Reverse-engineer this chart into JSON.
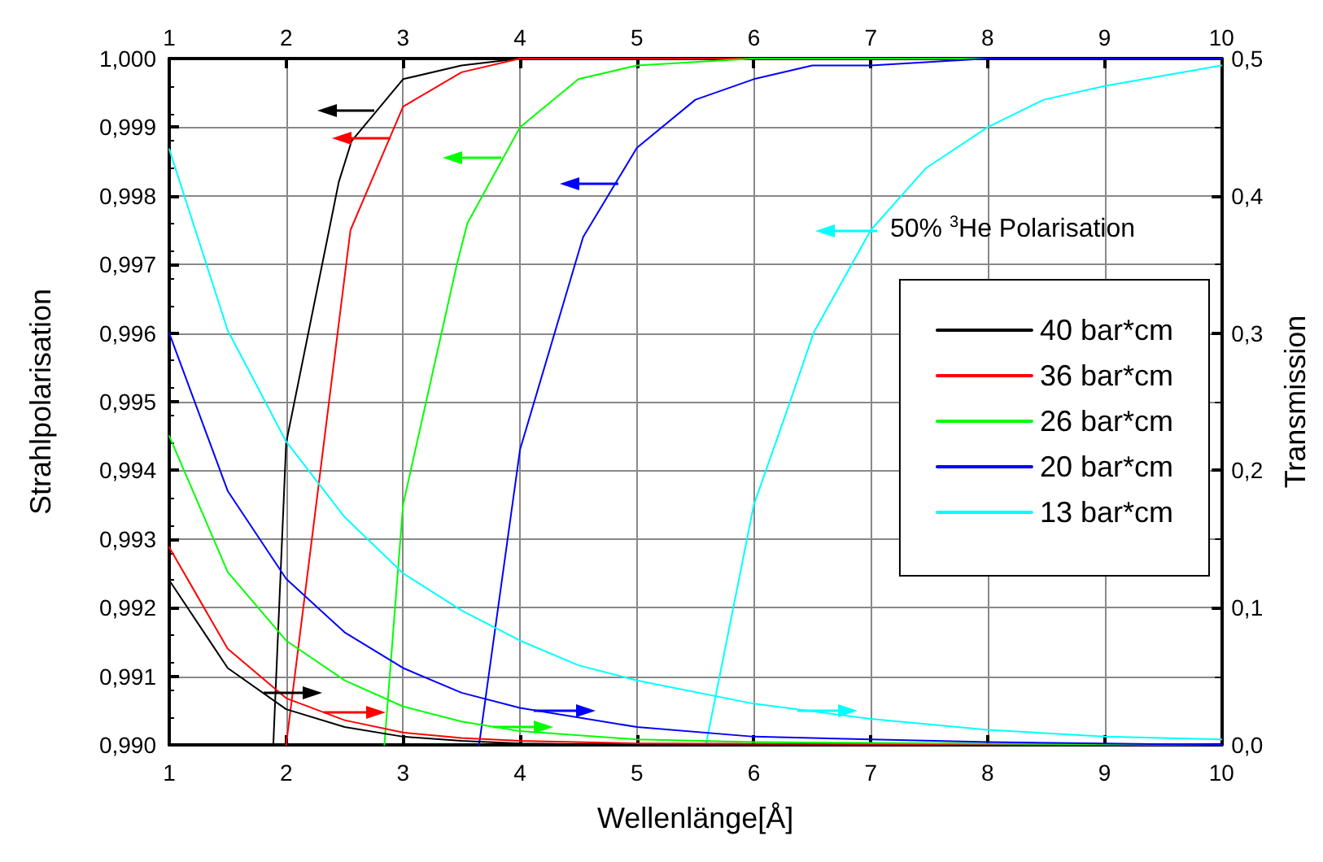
{
  "chart_data": {
    "type": "line",
    "xlabel": "Wellenlänge[Å]",
    "ylabel": "Strahlpolarisation",
    "y2label": "Transmission",
    "xlim": [
      1,
      10
    ],
    "xticks": [
      1,
      2,
      3,
      4,
      5,
      6,
      7,
      8,
      9,
      10
    ],
    "x2lim": [
      1,
      10
    ],
    "x2ticks": [
      1,
      2,
      3,
      4,
      5,
      6,
      7,
      8,
      9,
      10
    ],
    "ylim": [
      0.99,
      1.0
    ],
    "yticks": [
      {
        "value": 0.99,
        "label": "0,990"
      },
      {
        "value": 0.991,
        "label": "0,991"
      },
      {
        "value": 0.992,
        "label": "0,992"
      },
      {
        "value": 0.993,
        "label": "0,993"
      },
      {
        "value": 0.994,
        "label": "0,994"
      },
      {
        "value": 0.995,
        "label": "0,995"
      },
      {
        "value": 0.996,
        "label": "0,996"
      },
      {
        "value": 0.997,
        "label": "0,997"
      },
      {
        "value": 0.998,
        "label": "0,998"
      },
      {
        "value": 0.999,
        "label": "0,999"
      },
      {
        "value": 1.0,
        "label": "1,000"
      }
    ],
    "y2lim": [
      0,
      0.5
    ],
    "y2ticks": [
      {
        "value": 0,
        "label": "0,0"
      },
      {
        "value": 0.1,
        "label": "0,1"
      },
      {
        "value": 0.2,
        "label": "0,2"
      },
      {
        "value": 0.3,
        "label": "0,3"
      },
      {
        "value": 0.4,
        "label": "0,4"
      },
      {
        "value": 0.5,
        "label": "0,5"
      }
    ],
    "grid": true,
    "legend": "right",
    "marker": "none",
    "annotations": [
      "50% $^{3}$He Polarisation"
    ],
    "series": [
      {
        "name": "40 bar*cm",
        "color": "#000000",
        "x": [
          1.89,
          2,
          2.45,
          2.56,
          3,
          3.5,
          4,
          10
        ],
        "values": [
          0.99,
          0.9944,
          0.9982,
          0.9988,
          0.9997,
          0.9999,
          1.0,
          1.0
        ]
      },
      {
        "name": "36 bar*cm",
        "color": "#ff0000",
        "x": [
          2,
          2.55,
          3,
          3.5,
          4,
          10
        ],
        "values": [
          0.99,
          0.9975,
          0.9993,
          0.9998,
          1.0,
          1.0
        ]
      },
      {
        "name": "26 bar*cm",
        "color": "#00ff00",
        "x": [
          2.84,
          3,
          3.46,
          3.55,
          4,
          4.5,
          5,
          6,
          10
        ],
        "values": [
          0.99,
          0.9935,
          0.997,
          0.9976,
          0.999,
          0.9997,
          0.9999,
          1.0,
          1.0
        ]
      },
      {
        "name": "20 bar*cm",
        "color": "#0000ff",
        "x": [
          3.65,
          4,
          4.47,
          4.54,
          5,
          5.5,
          6,
          6.5,
          7,
          8,
          10
        ],
        "values": [
          0.99,
          0.9943,
          0.997,
          0.9974,
          0.9987,
          0.9994,
          0.9997,
          0.9999,
          0.9999,
          1.0,
          1.0
        ]
      },
      {
        "name": "13 bar*cm",
        "color": "#00ffff",
        "x": [
          5.59,
          6,
          6.31,
          6.51,
          7,
          7.47,
          8,
          8.48,
          9,
          10
        ],
        "values": [
          0.99,
          0.9935,
          0.995,
          0.996,
          0.9975,
          0.9984,
          0.999,
          0.9994,
          0.9996,
          0.9999
        ]
      },
      {
        "color": "#000000",
        "axis": "y2",
        "x": [
          1,
          1.5,
          2,
          2.5,
          3,
          3.5,
          4,
          5,
          10
        ],
        "values": [
          0.12,
          0.056,
          0.026,
          0.013,
          0.006,
          0.003,
          0.001,
          0.0,
          0.0
        ]
      },
      {
        "color": "#ff0000",
        "axis": "y2",
        "x": [
          1,
          1.5,
          2,
          2.5,
          3,
          3.5,
          4,
          5,
          10
        ],
        "values": [
          0.144,
          0.07,
          0.034,
          0.018,
          0.009,
          0.005,
          0.003,
          0.001,
          0.0
        ]
      },
      {
        "color": "#00ff00",
        "axis": "y2",
        "x": [
          1,
          1.5,
          2,
          2.5,
          3,
          3.5,
          4,
          5,
          6,
          10
        ],
        "values": [
          0.225,
          0.126,
          0.076,
          0.047,
          0.028,
          0.017,
          0.01,
          0.004,
          0.002,
          0.0
        ]
      },
      {
        "color": "#0000ff",
        "axis": "y2",
        "x": [
          1,
          1.5,
          2,
          2.5,
          3,
          3.5,
          4,
          5,
          6,
          8,
          10
        ],
        "values": [
          0.3,
          0.185,
          0.121,
          0.082,
          0.056,
          0.038,
          0.027,
          0.013,
          0.006,
          0.002,
          0.0
        ]
      },
      {
        "color": "#00ffff",
        "axis": "y2",
        "x": [
          1,
          1.5,
          2,
          2.5,
          3,
          3.5,
          4,
          4.5,
          5,
          6,
          7,
          8,
          9,
          10
        ],
        "values": [
          0.434,
          0.302,
          0.221,
          0.166,
          0.125,
          0.098,
          0.076,
          0.058,
          0.047,
          0.03,
          0.019,
          0.011,
          0.006,
          0.004
        ]
      }
    ]
  }
}
